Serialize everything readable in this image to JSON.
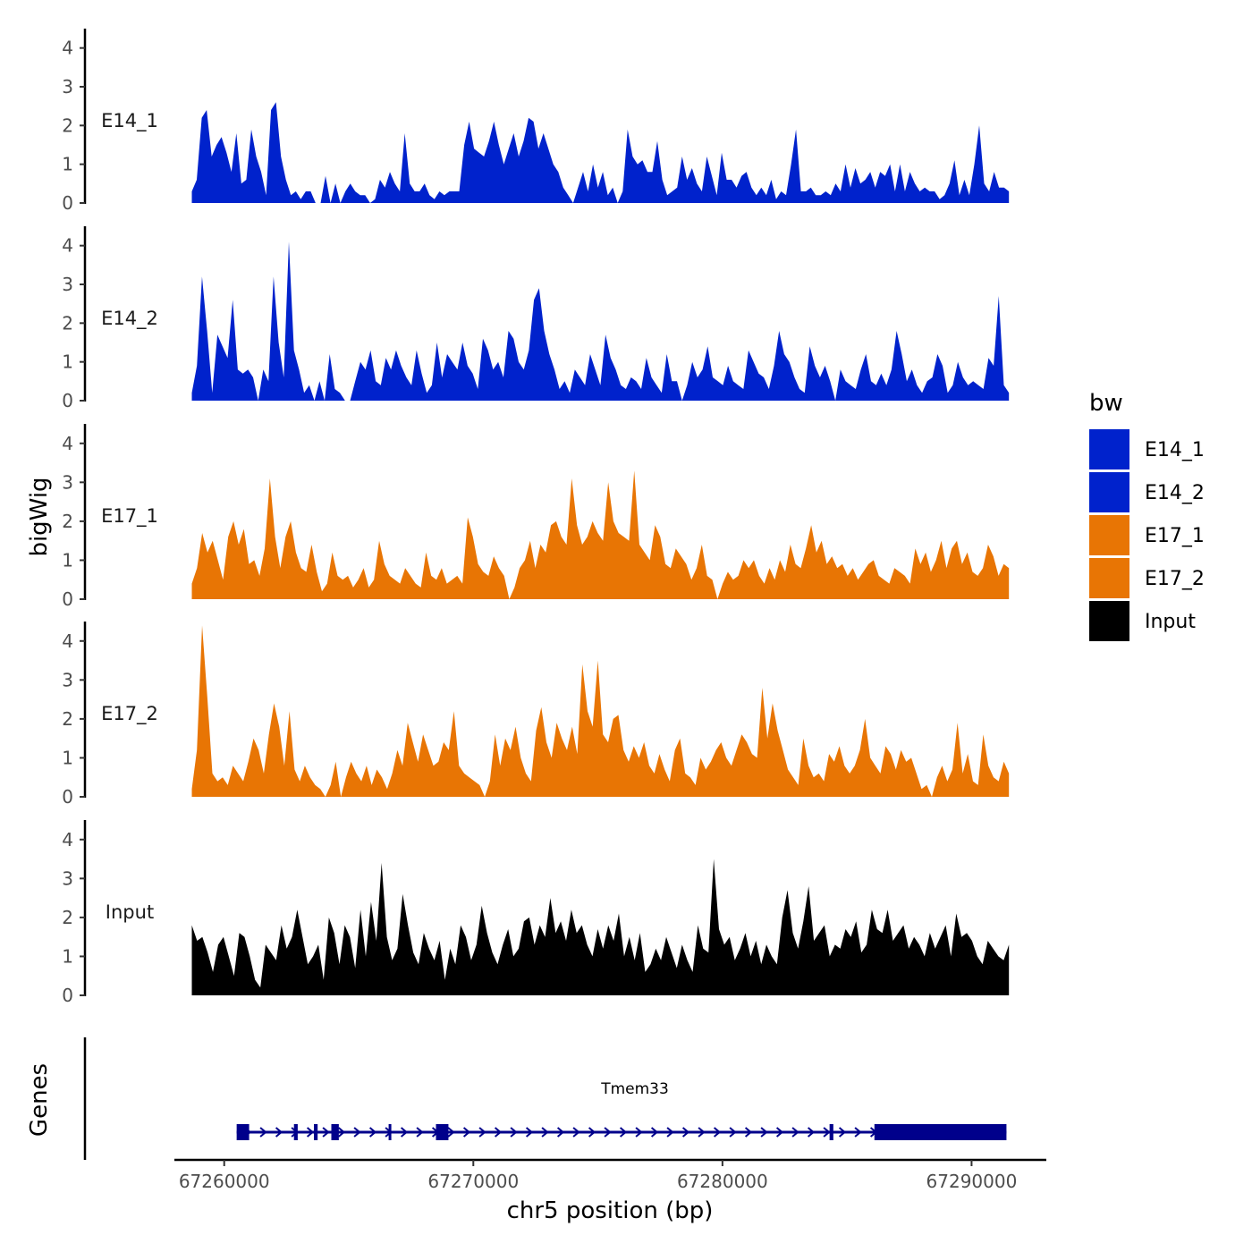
{
  "chart_data": {
    "type": "area",
    "xlabel": "chr5 position (bp)",
    "ylabel": "bigWig",
    "genes_label": "Genes",
    "xlim": [
      67258000,
      67293000
    ],
    "x_ticks": [
      67260000,
      67270000,
      67280000,
      67290000
    ],
    "x_tick_labels": [
      "67260000",
      "67270000",
      "67280000",
      "67290000"
    ],
    "ylim": [
      0,
      4.5
    ],
    "y_ticks": [
      0,
      1,
      2,
      3,
      4
    ],
    "y_tick_labels": [
      "0",
      "1",
      "2",
      "3",
      "4"
    ],
    "data_x_range": [
      67258700,
      67291500
    ],
    "legend": {
      "title": "bw",
      "entries": [
        {
          "label": "E14_1",
          "color": "#0022cc"
        },
        {
          "label": "E14_2",
          "color": "#0022cc"
        },
        {
          "label": "E17_1",
          "color": "#e87504"
        },
        {
          "label": "E17_2",
          "color": "#e87504"
        },
        {
          "label": "Input",
          "color": "#000000"
        }
      ]
    },
    "series": [
      {
        "name": "E14_1",
        "color": "#0022cc",
        "values": [
          0.3,
          0.6,
          2.2,
          2.4,
          1.2,
          1.5,
          1.7,
          1.3,
          0.8,
          1.8,
          0.5,
          0.6,
          1.9,
          1.2,
          0.8,
          0.2,
          2.4,
          2.6,
          1.2,
          0.6,
          0.2,
          0.3,
          0.1,
          0.3,
          0.3,
          0,
          0,
          0.7,
          0,
          0.5,
          0,
          0.3,
          0.5,
          0.3,
          0.2,
          0.2,
          0,
          0.1,
          0.6,
          0.4,
          0.8,
          0.5,
          0.3,
          1.8,
          0.5,
          0.3,
          0.3,
          0.5,
          0.2,
          0.1,
          0.3,
          0.2,
          0.3,
          0.3,
          0.3,
          1.5,
          2.1,
          1.4,
          1.3,
          1.2,
          1.6,
          2.1,
          1.5,
          1.0,
          1.4,
          1.8,
          1.2,
          1.6,
          2.2,
          2.1,
          1.4,
          1.8,
          1.4,
          1.0,
          0.8,
          0.4,
          0.2,
          0,
          0.4,
          0.8,
          0.3,
          1.0,
          0.4,
          0.8,
          0.2,
          0.4,
          0,
          0.3,
          1.9,
          1.2,
          1.0,
          1.1,
          0.8,
          0.8,
          1.6,
          0.6,
          0.2,
          0.3,
          0.4,
          1.2,
          0.6,
          0.9,
          0.5,
          0.3,
          1.2,
          0.7,
          0.2,
          1.3,
          0.6,
          0.6,
          0.4,
          0.7,
          0.8,
          0.4,
          0.2,
          0.4,
          0.2,
          0.6,
          0.1,
          0.3,
          0.2,
          1.0,
          1.9,
          0.3,
          0.3,
          0.4,
          0.2,
          0.2,
          0.3,
          0.2,
          0.5,
          0.3,
          1.0,
          0.4,
          0.9,
          0.5,
          0.6,
          0.8,
          0.4,
          0.8,
          0.7,
          1.0,
          0.3,
          1.0,
          0.3,
          0.8,
          0.5,
          0.3,
          0.4,
          0.3,
          0.3,
          0.1,
          0.2,
          0.5,
          1.1,
          0.2,
          0.6,
          0.2,
          1.0,
          2.0,
          0.5,
          0.3,
          0.8,
          0.4,
          0.4,
          0.3
        ]
      },
      {
        "name": "E14_2",
        "color": "#0022cc",
        "values": [
          0.2,
          0.9,
          3.2,
          1.8,
          0.2,
          1.7,
          1.4,
          1.1,
          2.6,
          0.8,
          0.7,
          0.8,
          0.6,
          0,
          0.8,
          0.5,
          3.2,
          1.5,
          0.6,
          4.1,
          1.3,
          0.8,
          0.2,
          0.4,
          0,
          0.5,
          0,
          1.2,
          0.3,
          0.2,
          0,
          0,
          0.5,
          1.0,
          0.8,
          1.3,
          0.5,
          0.4,
          1.1,
          0.8,
          1.3,
          0.9,
          0.6,
          0.4,
          1.3,
          0.7,
          0.2,
          0.4,
          1.5,
          0.6,
          1.2,
          1.0,
          0.8,
          1.5,
          0.9,
          0.7,
          0.3,
          1.6,
          1.3,
          0.8,
          1.0,
          0.6,
          1.8,
          1.6,
          1.0,
          0.8,
          1.3,
          2.6,
          2.9,
          1.8,
          1.2,
          0.8,
          0.3,
          0.5,
          0.2,
          0.8,
          0.6,
          0.4,
          1.2,
          0.8,
          0.4,
          1.7,
          1.1,
          0.8,
          0.4,
          0.3,
          0.6,
          0.5,
          0.3,
          1.1,
          0.6,
          0.4,
          0.2,
          1.2,
          0.5,
          0.5,
          0,
          0.4,
          1.0,
          0.6,
          0.8,
          1.4,
          0.6,
          0.5,
          0.4,
          0.9,
          0.5,
          0.4,
          0.3,
          1.3,
          1.0,
          0.7,
          0.6,
          0.3,
          0.9,
          1.8,
          1.2,
          1.0,
          0.6,
          0.3,
          0.2,
          1.4,
          0.9,
          0.6,
          0.9,
          0.5,
          0,
          0.8,
          0.5,
          0.4,
          0.3,
          0.8,
          1.2,
          0.5,
          0.4,
          0.7,
          0.4,
          0.8,
          1.8,
          1.2,
          0.5,
          0.8,
          0.4,
          0.2,
          0.5,
          0.6,
          1.2,
          0.9,
          0.2,
          0.4,
          1.0,
          0.6,
          0.4,
          0.5,
          0.4,
          0.3,
          1.1,
          0.9,
          2.7,
          0.4,
          0.2
        ]
      },
      {
        "name": "E17_1",
        "color": "#e87504",
        "values": [
          0.4,
          0.8,
          1.7,
          1.2,
          1.5,
          1.0,
          0.5,
          1.6,
          2.0,
          1.4,
          1.8,
          0.9,
          1.0,
          0.6,
          1.3,
          3.1,
          1.6,
          0.8,
          1.6,
          2.0,
          1.2,
          0.8,
          0.7,
          1.4,
          0.7,
          0.2,
          0.4,
          1.2,
          0.6,
          0.5,
          0.6,
          0.3,
          0.5,
          0.8,
          0.3,
          0.5,
          1.5,
          0.9,
          0.6,
          0.5,
          0.4,
          0.8,
          0.6,
          0.4,
          0.3,
          1.2,
          0.6,
          0.5,
          0.8,
          0.4,
          0.5,
          0.6,
          0.4,
          2.1,
          1.6,
          0.9,
          0.7,
          0.6,
          1.1,
          0.8,
          0.6,
          0,
          0.3,
          0.8,
          1.0,
          1.5,
          0.8,
          1.4,
          1.2,
          1.9,
          2.0,
          1.6,
          1.4,
          3.1,
          1.9,
          1.4,
          1.6,
          2.0,
          1.7,
          1.5,
          3.0,
          2.0,
          1.7,
          1.6,
          1.5,
          3.3,
          1.4,
          1.2,
          1.0,
          1.9,
          1.6,
          0.9,
          0.8,
          1.3,
          1.1,
          0.9,
          0.5,
          0.8,
          1.4,
          0.6,
          0.5,
          0,
          0.4,
          0.7,
          0.5,
          0.6,
          1.0,
          0.8,
          1.0,
          0.6,
          0.4,
          0.8,
          0.5,
          1.0,
          0.7,
          1.4,
          0.9,
          0.8,
          1.3,
          1.9,
          1.2,
          1.5,
          0.9,
          1.1,
          0.8,
          0.9,
          0.6,
          0.8,
          0.5,
          0.7,
          0.9,
          1.0,
          0.6,
          0.5,
          0.4,
          0.8,
          0.7,
          0.6,
          0.4,
          1.3,
          0.9,
          1.2,
          0.7,
          1.0,
          1.5,
          0.8,
          1.3,
          1.5,
          0.9,
          1.2,
          0.7,
          0.6,
          0.8,
          1.4,
          1.1,
          0.6,
          0.9,
          0.8
        ]
      },
      {
        "name": "E17_2",
        "color": "#e87504",
        "values": [
          0.2,
          1.2,
          4.4,
          2.6,
          0.6,
          0.4,
          0.5,
          0.3,
          0.8,
          0.6,
          0.4,
          0.9,
          1.5,
          1.2,
          0.6,
          1.6,
          2.4,
          1.8,
          0.8,
          2.2,
          0.7,
          0.4,
          0.8,
          0.5,
          0.3,
          0.2,
          0,
          0.3,
          0.9,
          0,
          0.5,
          0.9,
          0.6,
          0.4,
          0.8,
          0.3,
          0.7,
          0.5,
          0.2,
          0.6,
          1.2,
          0.8,
          1.9,
          1.4,
          0.9,
          1.6,
          1.2,
          0.8,
          0.9,
          1.4,
          1.2,
          2.2,
          0.8,
          0.6,
          0.5,
          0.4,
          0.3,
          0,
          0.4,
          1.6,
          0.8,
          1.5,
          1.2,
          1.8,
          1.0,
          0.6,
          0.4,
          1.7,
          2.3,
          1.4,
          1.0,
          1.9,
          1.5,
          1.2,
          1.8,
          1.1,
          3.4,
          2.2,
          1.8,
          3.5,
          1.6,
          1.4,
          2.0,
          2.1,
          1.2,
          0.9,
          1.3,
          1.0,
          1.4,
          0.8,
          0.6,
          1.1,
          0.7,
          0.4,
          1.2,
          1.5,
          0.6,
          0.5,
          0.3,
          1.0,
          0.7,
          0.9,
          1.2,
          1.4,
          1.0,
          0.8,
          1.2,
          1.6,
          1.4,
          1.1,
          1.0,
          2.8,
          1.5,
          2.4,
          1.7,
          1.2,
          0.7,
          0.5,
          0.3,
          1.5,
          0.8,
          0.5,
          0.6,
          0.4,
          1.1,
          0.9,
          1.3,
          0.8,
          0.6,
          0.8,
          1.2,
          2.0,
          1.0,
          0.8,
          0.6,
          1.3,
          1.1,
          0.7,
          1.2,
          0.9,
          1.0,
          0.6,
          0.2,
          0.3,
          0,
          0.5,
          0.8,
          0.4,
          0.7,
          1.9,
          0.6,
          1.1,
          0.4,
          0.3,
          1.6,
          0.8,
          0.5,
          0.4,
          0.9,
          0.6
        ]
      },
      {
        "name": "Input",
        "color": "#000000",
        "values": [
          1.8,
          1.4,
          1.5,
          1.1,
          0.6,
          1.3,
          1.5,
          1.0,
          0.5,
          1.6,
          1.5,
          1.0,
          0.4,
          0.2,
          1.3,
          1.1,
          0.9,
          1.8,
          1.2,
          1.5,
          2.2,
          1.5,
          0.8,
          1.0,
          1.3,
          0.4,
          2.0,
          1.6,
          0.8,
          1.8,
          1.5,
          0.7,
          2.2,
          1.0,
          2.4,
          1.4,
          3.4,
          1.5,
          0.9,
          1.2,
          2.6,
          1.8,
          1.1,
          0.8,
          1.6,
          1.2,
          0.9,
          1.4,
          0.4,
          1.2,
          0.8,
          1.8,
          1.5,
          0.9,
          1.3,
          2.3,
          1.6,
          1.1,
          0.8,
          1.3,
          1.7,
          1.0,
          1.2,
          1.9,
          2.0,
          1.3,
          1.8,
          1.5,
          2.5,
          1.6,
          1.9,
          1.4,
          2.2,
          1.6,
          1.8,
          1.3,
          1.0,
          1.7,
          1.2,
          1.8,
          1.4,
          2.1,
          1.0,
          1.5,
          0.9,
          1.6,
          0.6,
          0.8,
          1.2,
          0.9,
          1.5,
          1.1,
          0.7,
          1.3,
          0.9,
          0.6,
          1.8,
          1.2,
          1.1,
          3.5,
          1.7,
          1.3,
          1.5,
          0.9,
          1.2,
          1.6,
          1.0,
          1.4,
          0.8,
          1.3,
          1.0,
          0.8,
          2.0,
          2.7,
          1.6,
          1.2,
          1.9,
          2.8,
          1.4,
          1.6,
          1.8,
          1.0,
          1.3,
          1.2,
          1.7,
          1.5,
          1.9,
          1.1,
          1.3,
          2.2,
          1.7,
          1.6,
          2.2,
          1.4,
          1.6,
          1.8,
          1.2,
          1.5,
          1.3,
          1.0,
          1.6,
          1.2,
          1.5,
          1.8,
          1.0,
          2.1,
          1.5,
          1.6,
          1.4,
          1.0,
          0.8,
          1.4,
          1.2,
          1.0,
          0.9,
          1.3
        ]
      }
    ],
    "gene": {
      "name": "Tmem33",
      "strand": "+",
      "start": 67260500,
      "end": 67291400,
      "exons": [
        [
          67260500,
          67261000
        ],
        [
          67262800,
          67262950
        ],
        [
          67263600,
          67263750
        ],
        [
          67264300,
          67264600
        ],
        [
          67266600,
          67266700
        ],
        [
          67268500,
          67269000
        ],
        [
          67284300,
          67284450
        ],
        [
          67286100,
          67291400
        ]
      ]
    }
  }
}
